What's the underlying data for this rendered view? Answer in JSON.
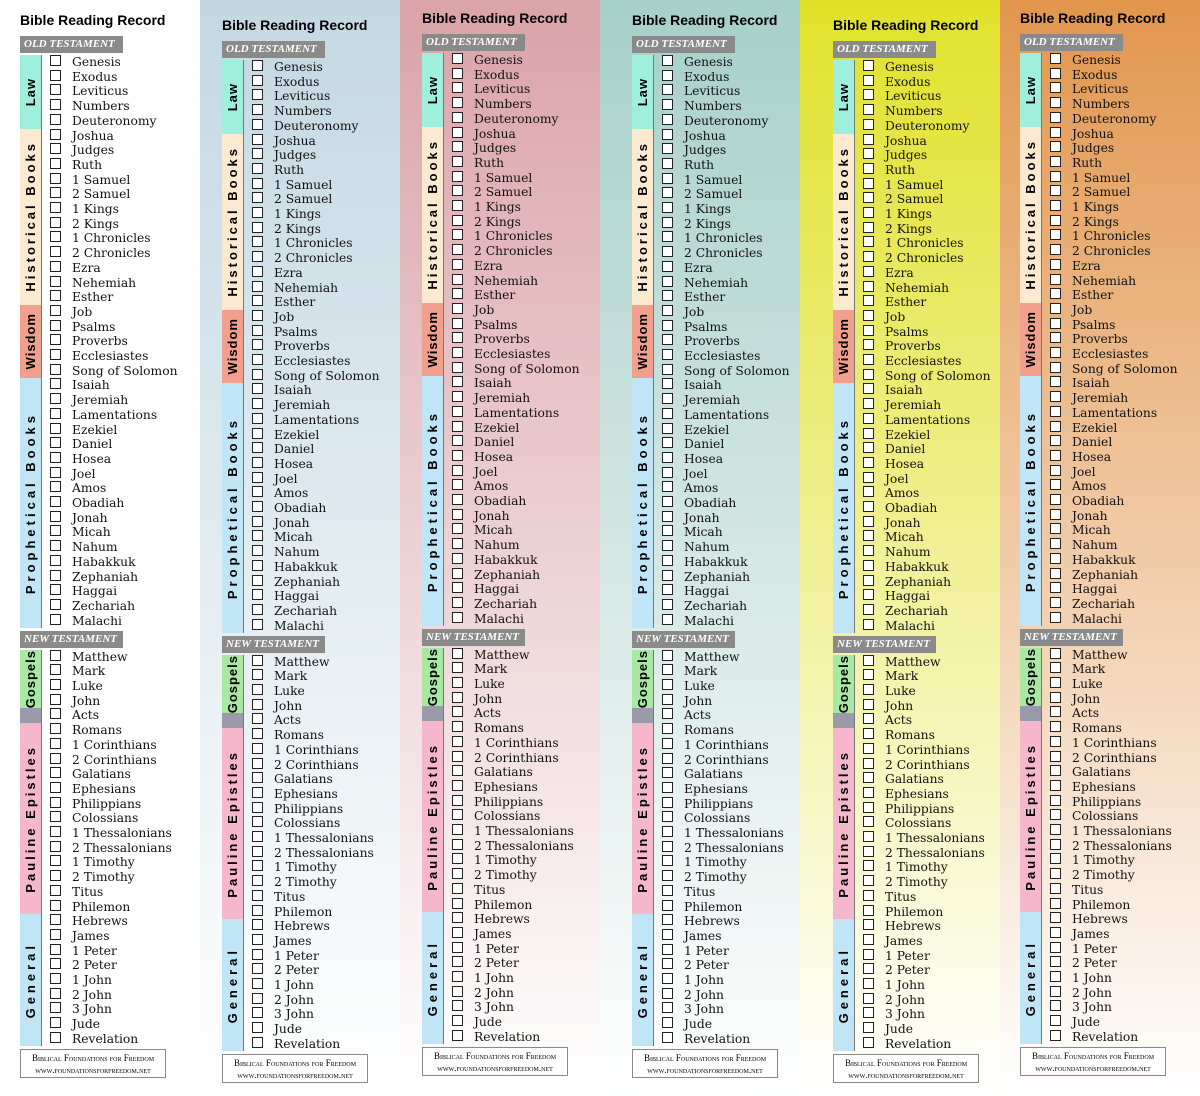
{
  "title": "Bible Reading Record",
  "sections": [
    {
      "label": "OLD TESTAMENT",
      "groups": [
        {
          "name": "Law",
          "books": [
            "Genesis",
            "Exodus",
            "Leviticus",
            "Numbers",
            "Deuteronomy"
          ]
        },
        {
          "name": "Historical Books",
          "books": [
            "Joshua",
            "Judges",
            "Ruth",
            "1 Samuel",
            "2 Samuel",
            "1 Kings",
            "2 Kings",
            "1 Chronicles",
            "2 Chronicles",
            "Ezra",
            "Nehemiah",
            "Esther"
          ]
        },
        {
          "name": "Wisdom",
          "books": [
            "Job",
            "Psalms",
            "Proverbs",
            "Ecclesiastes",
            "Song of Solomon"
          ]
        },
        {
          "name": "Prophetical Books",
          "books": [
            "Isaiah",
            "Jeremiah",
            "Lamentations",
            "Ezekiel",
            "Daniel",
            "Hosea",
            "Joel",
            "Amos",
            "Obadiah",
            "Jonah",
            "Micah",
            "Nahum",
            "Habakkuk",
            "Zephaniah",
            "Haggai",
            "Zechariah",
            "Malachi"
          ]
        }
      ]
    },
    {
      "label": "NEW TESTAMENT",
      "groups": [
        {
          "name": "Gospels",
          "books": [
            "Matthew",
            "Mark",
            "Luke",
            "John"
          ]
        },
        {
          "books": [
            "Acts"
          ]
        },
        {
          "name": "Pauline Epistles",
          "books": [
            "Romans",
            "1 Corinthians",
            "2 Corinthians",
            "Galatians",
            "Ephesians",
            "Philippians",
            "Colossians",
            "1 Thessalonians",
            "2 Thessalonians",
            "1 Timothy",
            "2 Timothy",
            "Titus",
            "Philemon"
          ]
        },
        {
          "name": "General",
          "books": [
            "Hebrews",
            "James",
            "1 Peter",
            "2 Peter",
            "1 John",
            "2 John",
            "3 John",
            "Jude",
            "Revelation"
          ]
        }
      ]
    }
  ],
  "footer": [
    "Biblical Foundations for Freedom",
    "www.foundationsforfreedom.net"
  ]
}
